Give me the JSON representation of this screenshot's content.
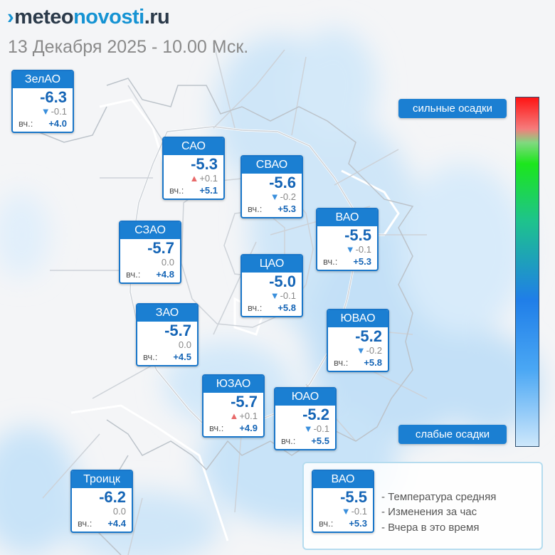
{
  "header": {
    "logo_mark": "›",
    "logo_part1": "meteo",
    "logo_part2": "novosti",
    "logo_part3": ".ru",
    "datetime": "13 Декабря 2025 - 10.00 Мск."
  },
  "colors": {
    "card_header": "#1b7fd2",
    "temperature": "#1565b6",
    "arrow_down": "#3a8fdc",
    "arrow_up": "#e86a6a"
  },
  "yesterday_label": "вч.:",
  "districts": [
    {
      "name": "ЗелАО",
      "temp": "-6.3",
      "arrow": "▼",
      "change": "-0.1",
      "yesterday": "+4.0"
    },
    {
      "name": "САО",
      "temp": "-5.3",
      "arrow": "▲",
      "change": "+0.1",
      "yesterday": "+5.1"
    },
    {
      "name": "СВАО",
      "temp": "-5.6",
      "arrow": "▼",
      "change": "-0.2",
      "yesterday": "+5.3"
    },
    {
      "name": "ВАО",
      "temp": "-5.5",
      "arrow": "▼",
      "change": "-0.1",
      "yesterday": "+5.3"
    },
    {
      "name": "СЗАО",
      "temp": "-5.7",
      "arrow": "",
      "change": "0.0",
      "yesterday": "+4.8"
    },
    {
      "name": "ЦАО",
      "temp": "-5.0",
      "arrow": "▼",
      "change": "-0.1",
      "yesterday": "+5.8"
    },
    {
      "name": "ЗАО",
      "temp": "-5.7",
      "arrow": "",
      "change": "0.0",
      "yesterday": "+4.5"
    },
    {
      "name": "ЮВАО",
      "temp": "-5.2",
      "arrow": "▼",
      "change": "-0.2",
      "yesterday": "+5.8"
    },
    {
      "name": "ЮЗАО",
      "temp": "-5.7",
      "arrow": "▲",
      "change": "+0.1",
      "yesterday": "+4.9"
    },
    {
      "name": "ЮАО",
      "temp": "-5.2",
      "arrow": "▼",
      "change": "-0.1",
      "yesterday": "+5.5"
    },
    {
      "name": "Троицк",
      "temp": "-6.2",
      "arrow": "",
      "change": "0.0",
      "yesterday": "+4.4"
    }
  ],
  "scale": {
    "top_label": "сильные осадки",
    "bottom_label": "слабые осадки"
  },
  "legend": {
    "sample": {
      "name": "ВАО",
      "temp": "-5.5",
      "arrow": "▼",
      "change": "-0.1",
      "yesterday": "+5.3"
    },
    "line1": "- Температура средняя",
    "line2": "- Изменения за час",
    "line3": "- Вчера в это время"
  }
}
